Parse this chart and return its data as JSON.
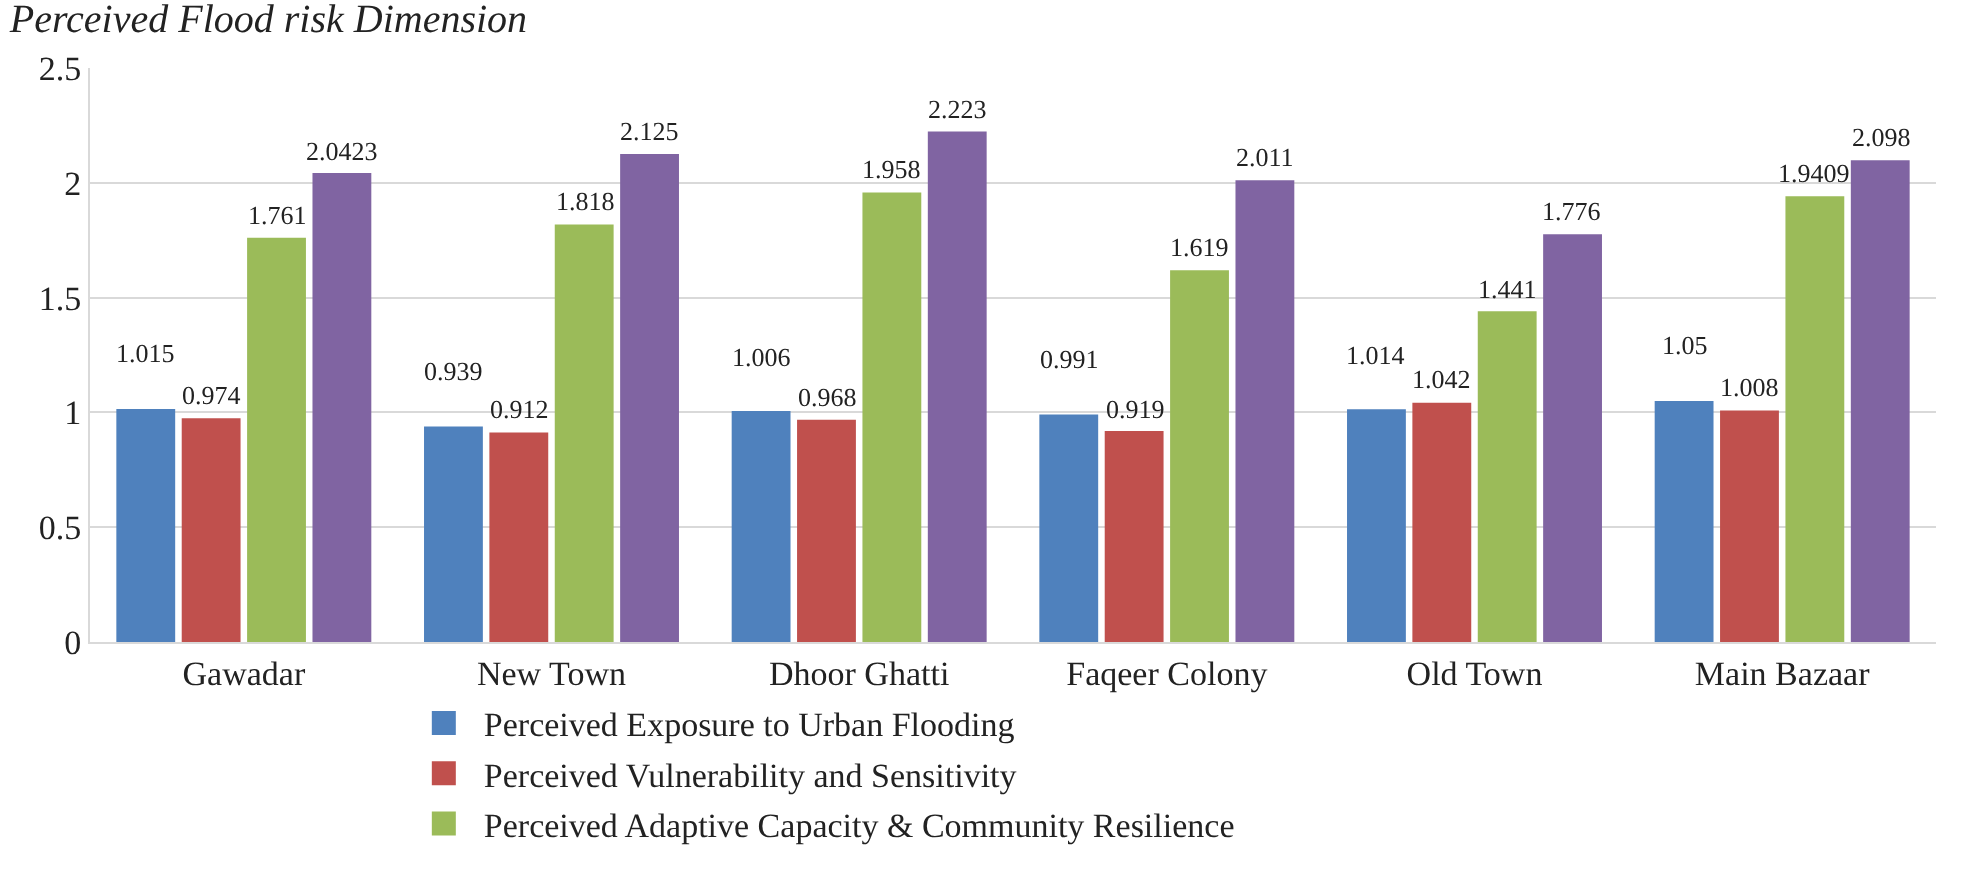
{
  "chart_data": {
    "type": "bar",
    "title": "Perceived Flood risk Dimension",
    "categories": [
      "Gawadar",
      "New Town",
      "Dhoor Ghatti",
      "Faqeer Colony",
      "Old Town",
      "Main Bazaar"
    ],
    "series": [
      {
        "name": "Perceived Exposure to Urban Flooding",
        "color": "#4f81bd",
        "values": [
          1.015,
          0.939,
          1.006,
          0.991,
          1.014,
          1.05
        ]
      },
      {
        "name": "Perceived Vulnerability and Sensitivity",
        "color": "#c0504d",
        "values": [
          0.974,
          0.912,
          0.968,
          0.919,
          1.042,
          1.008
        ]
      },
      {
        "name": "Perceived Adaptive Capacity & Community Resilience",
        "color": "#9bbb59",
        "values": [
          1.761,
          1.818,
          1.958,
          1.619,
          1.441,
          1.9409
        ]
      },
      {
        "color": "#8064a2",
        "values": [
          2.0423,
          2.125,
          2.223,
          2.011,
          1.776,
          2.098
        ]
      }
    ],
    "ylim": [
      0,
      2.5
    ],
    "yticks": [
      0,
      0.5,
      1,
      1.5,
      2,
      2.5
    ],
    "grid": "y",
    "legend": "bottom",
    "data_labels": true
  }
}
